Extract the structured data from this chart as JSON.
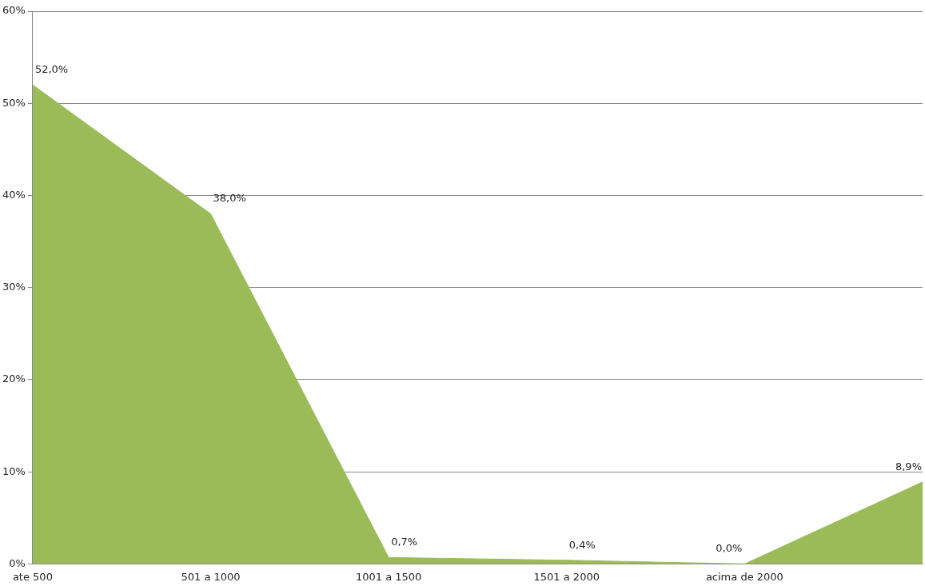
{
  "chart_data": {
    "type": "area",
    "categories": [
      "ate 500",
      "501 a 1000",
      "1001 a 1500",
      "1501 a 2000",
      "acima de 2000",
      null
    ],
    "series": [
      {
        "color": "#9bbb59",
        "values": [
          52,
          38,
          0.7,
          0.4,
          0,
          8.9
        ],
        "value_labels": [
          "52,0%",
          "38,0%",
          "0,7%",
          "0,4%",
          "0,0%",
          "8,9%"
        ]
      }
    ],
    "ylim": [
      0,
      60
    ],
    "yticks": [
      {
        "value": 0,
        "label": "0%"
      },
      {
        "value": 10,
        "label": "10%"
      },
      {
        "value": 20,
        "label": "20%"
      },
      {
        "value": 30,
        "label": "30%"
      },
      {
        "value": 40,
        "label": "40%"
      },
      {
        "value": 50,
        "label": "50%"
      },
      {
        "value": 60,
        "label": "60%"
      }
    ],
    "grid": "y",
    "legend": false
  }
}
